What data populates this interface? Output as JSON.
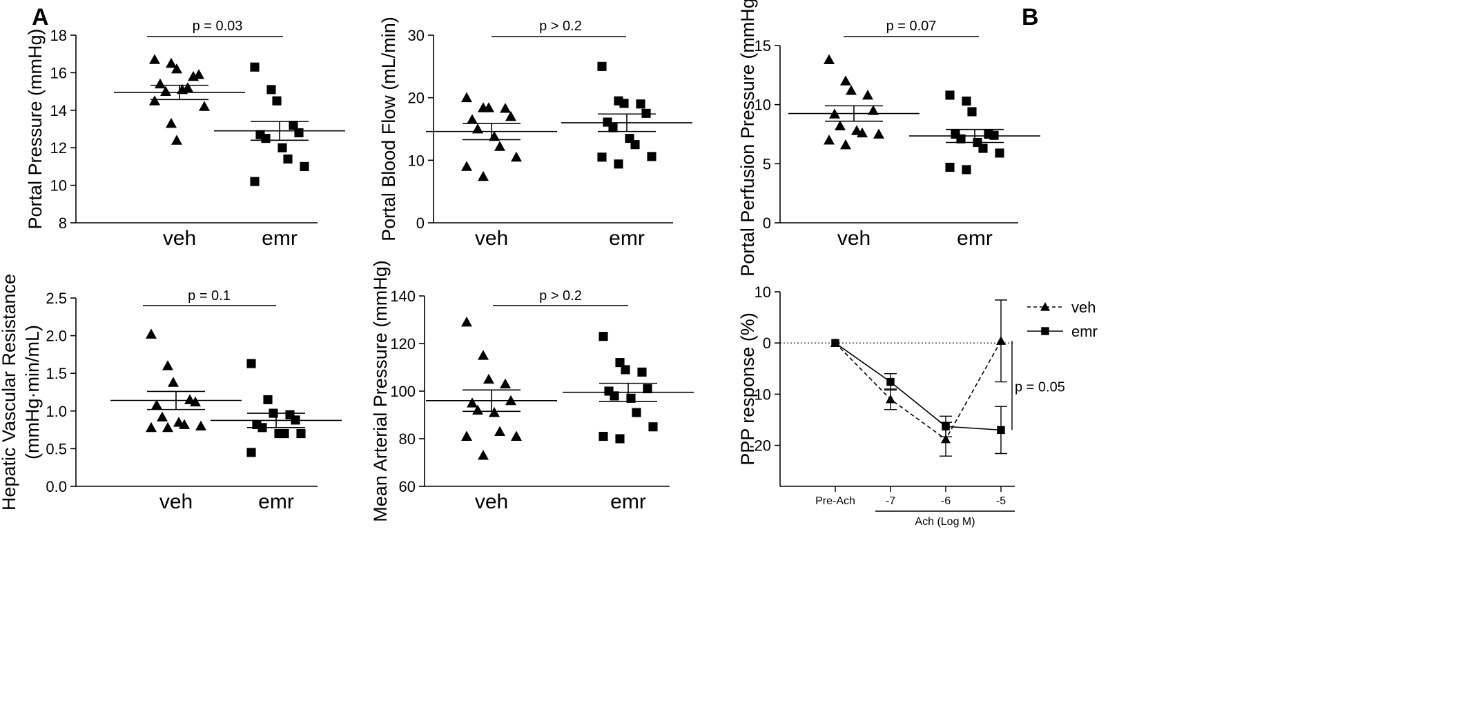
{
  "panel_letters": [
    "A",
    "B"
  ],
  "chart_data": [
    {
      "type": "scatter",
      "ylabel": "Portal Pressure (mmHg)",
      "ylim": [
        8,
        18
      ],
      "yticks": [
        8,
        10,
        12,
        14,
        16,
        18
      ],
      "categories": [
        "veh",
        "emr"
      ],
      "p_label": "p = 0.03",
      "series": [
        {
          "category": "veh",
          "marker": "triangle",
          "values": [
            16.7,
            16.5,
            16.2,
            15.8,
            15.9,
            15.4,
            15.0,
            15.1,
            15.2,
            14.2,
            14.5,
            13.3,
            12.4
          ],
          "mean": 14.95,
          "sem": 0.38
        },
        {
          "category": "emr",
          "marker": "square",
          "values": [
            16.3,
            15.1,
            14.5,
            13.2,
            12.8,
            12.7,
            12.5,
            12.0,
            11.4,
            11.0,
            10.2
          ],
          "mean": 12.9,
          "sem": 0.5
        }
      ]
    },
    {
      "type": "scatter",
      "ylabel": "Portal Blood Flow (mL/min)",
      "ylim": [
        0,
        30
      ],
      "yticks": [
        0,
        10,
        20,
        30
      ],
      "categories": [
        "veh",
        "emr"
      ],
      "p_label": "p > 0.2",
      "series": [
        {
          "category": "veh",
          "marker": "triangle",
          "values": [
            20.0,
            18.4,
            18.4,
            18.3,
            17.0,
            16.5,
            15.0,
            13.8,
            12.2,
            10.5,
            9.0,
            7.4
          ],
          "mean": 14.6,
          "sem": 1.3
        },
        {
          "category": "emr",
          "marker": "square",
          "values": [
            25.0,
            19.5,
            19.1,
            19.0,
            17.5,
            16.1,
            15.2,
            13.5,
            12.5,
            10.6,
            10.5,
            9.4
          ],
          "mean": 16.0,
          "sem": 1.4
        }
      ]
    },
    {
      "type": "scatter",
      "ylabel": "Portal Perfusion Pressure (mmHg)",
      "ylim": [
        0,
        15
      ],
      "yticks": [
        0,
        5,
        10,
        15
      ],
      "categories": [
        "veh",
        "emr"
      ],
      "p_label": "p = 0.07",
      "series": [
        {
          "category": "veh",
          "marker": "triangle",
          "values": [
            13.8,
            12.0,
            11.2,
            10.8,
            9.5,
            9.2,
            8.2,
            7.8,
            7.6,
            7.5,
            7.0,
            6.6
          ],
          "mean": 9.25,
          "sem": 0.65
        },
        {
          "category": "emr",
          "marker": "square",
          "values": [
            10.8,
            10.3,
            9.4,
            7.5,
            7.4,
            7.5,
            7.1,
            6.8,
            6.3,
            5.9,
            4.7,
            4.5
          ],
          "mean": 7.35,
          "sem": 0.55
        }
      ]
    },
    {
      "type": "scatter",
      "ylabel": [
        "Hepatic Vascular Resistance",
        "(mmHg·min/mL)"
      ],
      "ylim": [
        0.0,
        2.5
      ],
      "yticks": [
        "0.0",
        "0.5",
        "1.0",
        "1.5",
        "2.0",
        "2.5"
      ],
      "categories": [
        "veh",
        "emr"
      ],
      "p_label": "p = 0.1",
      "series": [
        {
          "category": "veh",
          "marker": "triangle",
          "values": [
            2.02,
            1.6,
            1.38,
            1.15,
            1.12,
            1.08,
            0.92,
            0.85,
            0.82,
            0.8,
            0.78,
            0.78
          ],
          "mean": 1.14,
          "sem": 0.12
        },
        {
          "category": "emr",
          "marker": "square",
          "values": [
            1.63,
            1.15,
            0.97,
            0.95,
            0.88,
            0.82,
            0.78,
            0.7,
            0.7,
            0.7,
            0.45
          ],
          "mean": 0.875,
          "sem": 0.095
        }
      ]
    },
    {
      "type": "scatter",
      "ylabel": "Mean Arterial Pressure (mmHg)",
      "ylim": [
        60,
        140
      ],
      "yticks": [
        60,
        80,
        100,
        120,
        140
      ],
      "categories": [
        "veh",
        "emr"
      ],
      "p_label": "p > 0.2",
      "series": [
        {
          "category": "veh",
          "marker": "triangle",
          "values": [
            129,
            115,
            105,
            103,
            96,
            95,
            92,
            91,
            83,
            81,
            81,
            73
          ],
          "mean": 96.0,
          "sem": 4.5
        },
        {
          "category": "emr",
          "marker": "square",
          "values": [
            123,
            112,
            109,
            108,
            101,
            100,
            98,
            97,
            91,
            85,
            81,
            80
          ],
          "mean": 99.5,
          "sem": 3.8
        }
      ]
    },
    {
      "type": "line",
      "ylabel": "PPP response (%)",
      "xlabel": "Ach (Log M)",
      "ylim": [
        -28,
        10
      ],
      "yticks": [
        -20,
        -10,
        0,
        10
      ],
      "x_categories": [
        "Pre-Ach",
        "-7",
        "-6",
        "-5"
      ],
      "p_label": "p = 0.05",
      "legend_position": "top-right",
      "series": [
        {
          "name": "veh",
          "marker": "triangle",
          "line": "dashed",
          "values": [
            0,
            -11.0,
            -18.8,
            0.4
          ],
          "errors": [
            0,
            2.0,
            3.3,
            8.0
          ]
        },
        {
          "name": "emr",
          "marker": "square",
          "line": "solid",
          "values": [
            0,
            -7.6,
            -16.3,
            -17.0
          ],
          "errors": [
            0,
            1.6,
            2.0,
            4.6
          ]
        }
      ]
    }
  ]
}
